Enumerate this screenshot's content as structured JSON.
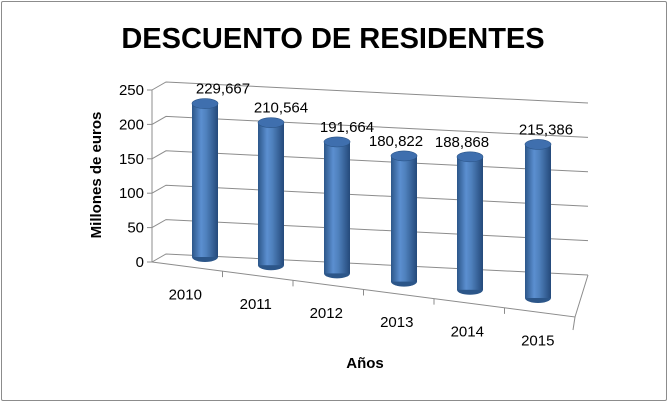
{
  "chart_data": {
    "type": "bar",
    "style": "3d-cylinder",
    "title": "DESCUENTO DE RESIDENTES",
    "xlabel": "Años",
    "ylabel": "Millones de euros",
    "categories": [
      "2010",
      "2011",
      "2012",
      "2013",
      "2014",
      "2015"
    ],
    "values": [
      229.667,
      210.564,
      191.664,
      180.822,
      188.868,
      215.386
    ],
    "data_labels": [
      "229,667",
      "210,564",
      "191,664",
      "180,822",
      "188,868",
      "215,386"
    ],
    "yticks": [
      "0",
      "50",
      "100",
      "150",
      "200",
      "250"
    ],
    "ylim": [
      0,
      250
    ],
    "grid": true,
    "legend": "none",
    "colors": {
      "bar": "#4f81bd",
      "bar_dark": "#2c5689",
      "bar_light": "#8db3e2",
      "grid": "#8c8c8c",
      "text": "#000000"
    }
  }
}
